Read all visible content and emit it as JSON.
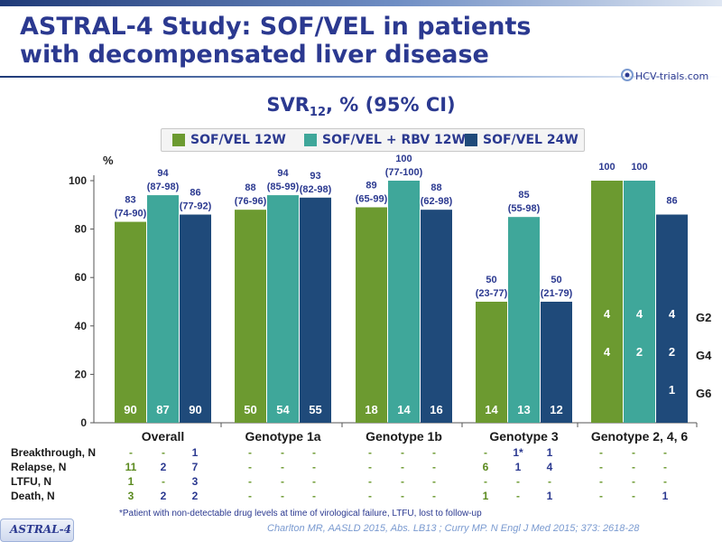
{
  "header": {
    "title_line1": "ASTRAL-4 Study: SOF/VEL in patients",
    "title_line2": "with decompensated liver disease",
    "logo_text": "HCV-trials.com"
  },
  "subtitle": {
    "main": "SVR",
    "sub": "12",
    "rest": ", % (95% CI)"
  },
  "colors": {
    "sof_vel_12w": "#6c9a30",
    "sof_vel_rbv_12w": "#3fa79a",
    "sof_vel_24w": "#1f4a7a",
    "text_navy": "#2b3990",
    "value_text": "#2b3990",
    "green_text": "#5b8a1f"
  },
  "legend": [
    {
      "label": "SOF/VEL 12W",
      "color": "#6c9a30"
    },
    {
      "label": "SOF/VEL + RBV 12W",
      "color": "#3fa79a"
    },
    {
      "label": "SOF/VEL 24W",
      "color": "#1f4a7a"
    }
  ],
  "chart_data": {
    "type": "bar",
    "ylabel": "%",
    "ylim": [
      0,
      100
    ],
    "yticks": [
      "0",
      "20",
      "40",
      "60",
      "80",
      "100"
    ],
    "categories": [
      "Overall",
      "Genotype 1a",
      "Genotype 1b",
      "Genotype 3",
      "Genotype 2, 4, 6"
    ],
    "series": [
      {
        "name": "SOF/VEL 12W",
        "values": [
          83,
          88,
          89,
          50,
          100
        ],
        "pct_labels": [
          "83",
          "88",
          "89",
          "50",
          "100"
        ],
        "ci_labels": [
          "(74-90)",
          "(76-96)",
          "(65-99)",
          "(23-77)",
          ""
        ],
        "n_labels": [
          "90",
          "50",
          "18",
          "14",
          ""
        ]
      },
      {
        "name": "SOF/VEL + RBV 12W",
        "values": [
          94,
          94,
          100,
          85,
          100
        ],
        "pct_labels": [
          "94",
          "94",
          "100",
          "85",
          "100"
        ],
        "ci_labels": [
          "(87-98)",
          "(85-99)",
          "(77-100)",
          "(55-98)",
          ""
        ],
        "n_labels": [
          "87",
          "54",
          "14",
          "13",
          ""
        ]
      },
      {
        "name": "SOF/VEL 24W",
        "values": [
          86,
          93,
          88,
          50,
          86
        ],
        "pct_labels": [
          "86",
          "93",
          "88",
          "50",
          "86"
        ],
        "ci_labels": [
          "(77-92)",
          "(82-98)",
          "(62-98)",
          "(21-79)",
          ""
        ],
        "n_labels": [
          "90",
          "55",
          "16",
          "12",
          ""
        ]
      }
    ],
    "genotype_breakdown": {
      "rows": [
        "G2",
        "G4",
        "G6"
      ],
      "values": [
        [
          "4",
          "4",
          "4"
        ],
        [
          "4",
          "2",
          "2"
        ],
        [
          "",
          "",
          "1"
        ]
      ]
    }
  },
  "outcomes_table": {
    "rows": [
      {
        "label": "Breakthrough, N",
        "cells": [
          [
            "-",
            "-",
            "1"
          ],
          [
            "-",
            "-",
            "-"
          ],
          [
            "-",
            "-",
            "-"
          ],
          [
            "-",
            "1*",
            "1"
          ],
          [
            "-",
            "-",
            "-"
          ]
        ]
      },
      {
        "label": "Relapse, N",
        "cells": [
          [
            "11",
            "2",
            "7"
          ],
          [
            "-",
            "-",
            "-"
          ],
          [
            "-",
            "-",
            "-"
          ],
          [
            "6",
            "1",
            "4"
          ],
          [
            "-",
            "-",
            "-"
          ]
        ]
      },
      {
        "label": "LTFU, N",
        "cells": [
          [
            "1",
            "-",
            "3"
          ],
          [
            "-",
            "-",
            "-"
          ],
          [
            "-",
            "-",
            "-"
          ],
          [
            "-",
            "-",
            "-"
          ],
          [
            "-",
            "-",
            "-"
          ]
        ]
      },
      {
        "label": "Death, N",
        "cells": [
          [
            "3",
            "2",
            "2"
          ],
          [
            "-",
            "-",
            "-"
          ],
          [
            "-",
            "-",
            "-"
          ],
          [
            "1",
            "-",
            "1"
          ],
          [
            "-",
            "-",
            "1"
          ]
        ]
      }
    ]
  },
  "footnote": "*Patient with non-detectable drug levels at time of virological failure,  LTFU, lost to follow-up",
  "citation": "Charlton MR, AASLD 2015, Abs. LB13 ; Curry MP. N Engl J Med 2015; 373: 2618-28",
  "study_tag": "ASTRAL-4"
}
